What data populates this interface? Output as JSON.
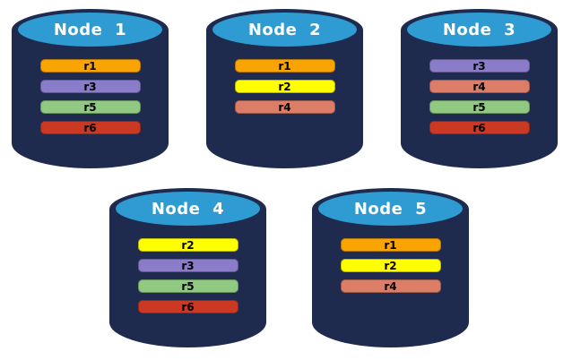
{
  "diagram": {
    "description_semantic": "replicated-database-nodes-diagram",
    "background": "#ffffff"
  },
  "colors": {
    "cylinder_body": "#1E2B4E",
    "cylinder_top": "#2E9BD3",
    "node_label_text": "#FFFFFF",
    "row_label_text": "#000000",
    "rows": {
      "r1": "#F9A403",
      "r2": "#FFFF00",
      "r3": "#8A7CC9",
      "r4": "#DC7D67",
      "r5": "#90C982",
      "r6": "#CC3922"
    }
  },
  "nodes": [
    {
      "label": "Node 1",
      "rows": [
        "r1",
        "r3",
        "r5",
        "r6"
      ]
    },
    {
      "label": "Node 2",
      "rows": [
        "r1",
        "r2",
        "r4"
      ]
    },
    {
      "label": "Node 3",
      "rows": [
        "r3",
        "r4",
        "r5",
        "r6"
      ]
    },
    {
      "label": "Node 4",
      "rows": [
        "r2",
        "r3",
        "r5",
        "r6"
      ]
    },
    {
      "label": "Node 5",
      "rows": [
        "r1",
        "r2",
        "r4"
      ]
    }
  ]
}
